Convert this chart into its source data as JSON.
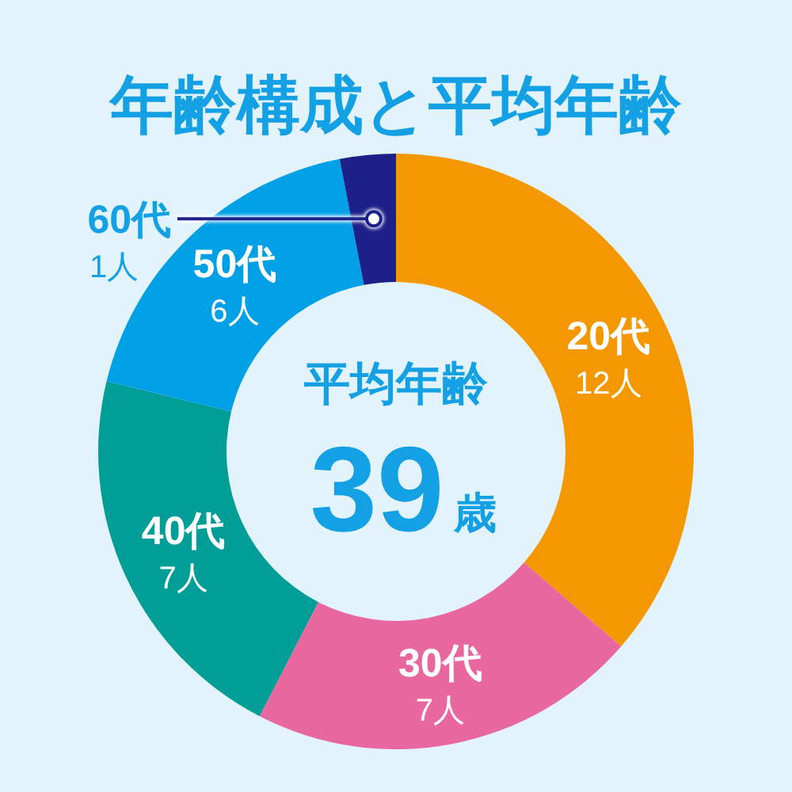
{
  "chart_data": {
    "type": "donut",
    "title": "年齢構成と平均年齢",
    "categories": [
      "20代",
      "30代",
      "40代",
      "50代",
      "60代"
    ],
    "values": [
      12,
      7,
      7,
      6,
      1
    ],
    "value_labels": [
      "12人",
      "7人",
      "7人",
      "6人",
      "1人"
    ],
    "colors": [
      "#f39800",
      "#e8679f",
      "#009e96",
      "#00a0e6",
      "#1d2088"
    ],
    "annotations": [
      "平均年齢",
      "39",
      "歳"
    ]
  }
}
